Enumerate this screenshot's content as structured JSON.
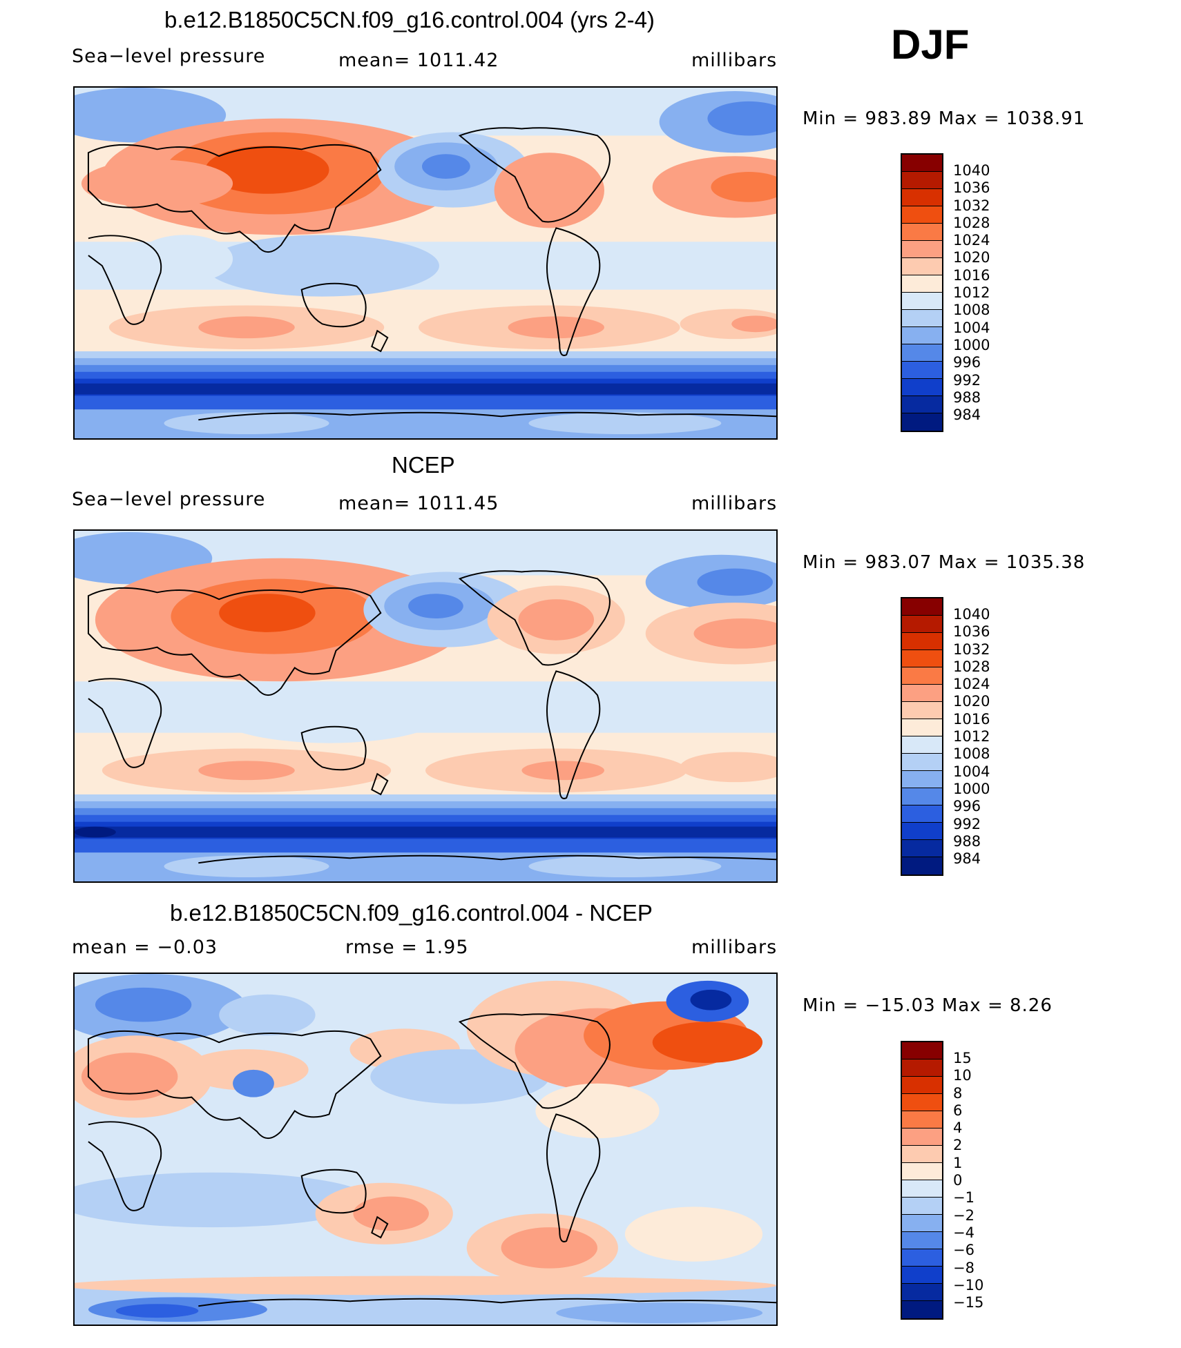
{
  "season": "DJF",
  "panels": [
    {
      "id": "model",
      "title": "b.e12.B1850C5CN.f09_g16.control.004 (yrs 2-4)",
      "left_label": "Sea−level pressure",
      "center_label": "mean=  1011.42",
      "units": "millibars",
      "minmax": "Min  =  983.89  Max  =  1038.91"
    },
    {
      "id": "obs",
      "title": "NCEP",
      "left_label": "Sea−level pressure",
      "center_label": "mean=  1011.45",
      "units": "millibars",
      "minmax": "Min  =  983.07  Max  =  1035.38"
    },
    {
      "id": "diff",
      "title": "b.e12.B1850C5CN.f09_g16.control.004 - NCEP",
      "left_label": "mean  =    −0.03",
      "center_label": "rmse  =     1.95",
      "units": "millibars",
      "minmax": "Min  =  −15.03  Max  =     8.26"
    }
  ],
  "colorbar_abs": {
    "labels": [
      "1040",
      "1036",
      "1032",
      "1028",
      "1024",
      "1020",
      "1016",
      "1012",
      "1008",
      "1004",
      "1000",
      "996",
      "992",
      "988",
      "984"
    ],
    "colors": [
      "#870000",
      "#b51a00",
      "#d83000",
      "#ef4f10",
      "#fa7a45",
      "#fca082",
      "#fdcbb0",
      "#fdebd9",
      "#d8e8f8",
      "#b4d0f5",
      "#87b0f0",
      "#5588e8",
      "#2c5fe0",
      "#103fcb",
      "#062aa0",
      "#001a80"
    ]
  },
  "colorbar_diff": {
    "labels": [
      "15",
      "10",
      "8",
      "6",
      "4",
      "2",
      "1",
      "0",
      "−1",
      "−2",
      "−4",
      "−6",
      "−8",
      "−10",
      "−15"
    ],
    "colors": [
      "#870000",
      "#b51a00",
      "#d83000",
      "#ef4f10",
      "#fa7a45",
      "#fca082",
      "#fdcbb0",
      "#fdebd9",
      "#d8e8f8",
      "#b4d0f5",
      "#87b0f0",
      "#5588e8",
      "#2c5fe0",
      "#103fcb",
      "#062aa0",
      "#001a80"
    ]
  }
}
